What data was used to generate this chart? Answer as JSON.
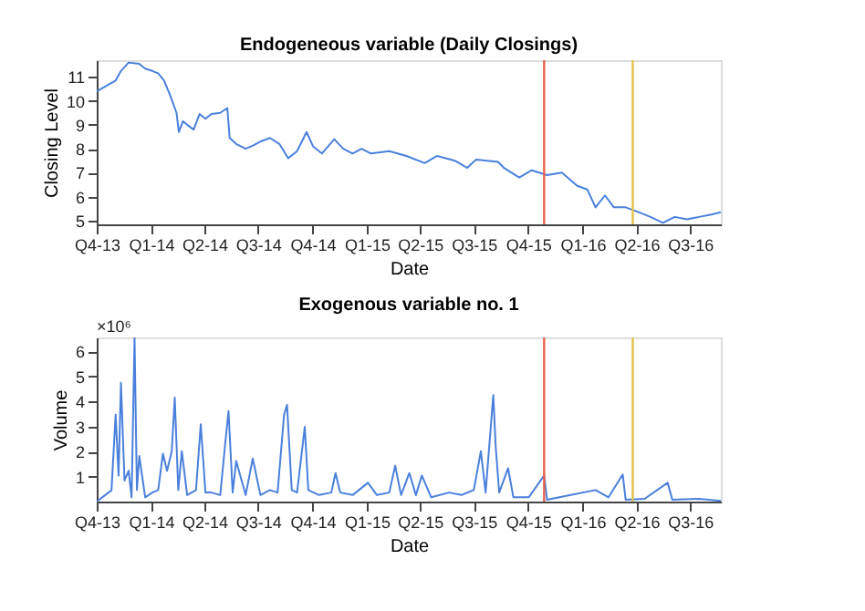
{
  "chart_data": [
    {
      "type": "line",
      "title": "Endogeneous variable (Daily Closings)",
      "xlabel": "Date",
      "ylabel": "Closing Level",
      "x": [
        "2013-10-01",
        "2013-11-02",
        "2013-11-11",
        "2013-11-24",
        "2013-12-12",
        "2013-12-22",
        "2014-01-03",
        "2014-01-13",
        "2014-01-23",
        "2014-02-02",
        "2014-02-13",
        "2014-02-17",
        "2014-02-24",
        "2014-03-03",
        "2014-03-14",
        "2014-03-24",
        "2014-04-03",
        "2014-04-13",
        "2014-04-28",
        "2014-05-10",
        "2014-05-14",
        "2014-05-25",
        "2014-06-10",
        "2014-06-24",
        "2014-07-05",
        "2014-07-21",
        "2014-08-06",
        "2014-08-21",
        "2014-09-05",
        "2014-09-21",
        "2014-10-02",
        "2014-10-17",
        "2014-11-07",
        "2014-11-22",
        "2014-12-08",
        "2014-12-23",
        "2015-01-08",
        "2015-02-08",
        "2015-03-09",
        "2015-04-09",
        "2015-04-30",
        "2015-05-30",
        "2015-06-20",
        "2015-07-05",
        "2015-08-11",
        "2015-08-21",
        "2015-09-16",
        "2015-10-07",
        "2015-11-02",
        "2015-11-27",
        "2015-12-23",
        "2016-01-09",
        "2016-01-23",
        "2016-02-08",
        "2016-02-23",
        "2016-03-14",
        "2016-04-05",
        "2016-04-25",
        "2016-05-16",
        "2016-06-05",
        "2016-06-26",
        "2016-07-16",
        "2016-08-06",
        "2016-08-22"
      ],
      "series": [
        {
          "color": "#4a80dc",
          "values": [
            10.4,
            10.85,
            11.25,
            11.6,
            11.55,
            11.35,
            11.25,
            11.15,
            10.85,
            10.25,
            9.5,
            8.7,
            9.15,
            9.0,
            8.8,
            9.45,
            9.25,
            9.45,
            9.5,
            9.7,
            8.45,
            8.2,
            8.0,
            8.15,
            8.3,
            8.45,
            8.2,
            7.6,
            7.9,
            8.7,
            8.1,
            7.8,
            8.4,
            8.0,
            7.8,
            8.0,
            7.8,
            7.9,
            7.7,
            7.4,
            7.7,
            7.5,
            7.2,
            7.55,
            7.45,
            7.2,
            6.8,
            7.1,
            6.9,
            7.0,
            6.45,
            6.3,
            5.55,
            6.05,
            5.55,
            5.55,
            5.35,
            5.15,
            4.9,
            5.15,
            5.05,
            5.15,
            5.25,
            5.35
          ]
        }
      ],
      "xlim": [
        "2013-10-01",
        "2016-08-22"
      ],
      "xticks": [
        {
          "value": "2013-10-01",
          "label": "Q4-13"
        },
        {
          "value": "2014-01-01",
          "label": "Q1-14"
        },
        {
          "value": "2014-04-01",
          "label": "Q2-14"
        },
        {
          "value": "2014-07-01",
          "label": "Q3-14"
        },
        {
          "value": "2014-10-01",
          "label": "Q4-14"
        },
        {
          "value": "2015-01-01",
          "label": "Q1-15"
        },
        {
          "value": "2015-04-01",
          "label": "Q2-15"
        },
        {
          "value": "2015-07-01",
          "label": "Q3-15"
        },
        {
          "value": "2015-10-01",
          "label": "Q4-15"
        },
        {
          "value": "2016-01-01",
          "label": "Q1-16"
        },
        {
          "value": "2016-04-01",
          "label": "Q2-16"
        },
        {
          "value": "2016-07-01",
          "label": "Q3-16"
        }
      ],
      "ylim": [
        4.84,
        11.7
      ],
      "yticks": [
        5,
        6,
        7,
        8,
        9,
        10,
        11
      ],
      "ref_lines": [
        {
          "axis": "x",
          "value": "2015-10-28",
          "color": "#e8604a"
        },
        {
          "axis": "x",
          "value": "2016-03-26",
          "color": "#e2c24a"
        }
      ],
      "grid": false
    },
    {
      "type": "line",
      "title": "Exogenous variable no. 1",
      "xlabel": "Date",
      "ylabel": "Volume",
      "annotations": [
        "×10⁶"
      ],
      "x": [
        "2013-10-01",
        "2013-10-26",
        "2013-11-02",
        "2013-11-07",
        "2013-11-11",
        "2013-11-17",
        "2013-11-24",
        "2013-11-29",
        "2013-12-04",
        "2013-12-08",
        "2013-12-12",
        "2013-12-22",
        "2014-01-03",
        "2014-01-13",
        "2014-01-21",
        "2014-01-28",
        "2014-02-05",
        "2014-02-10",
        "2014-02-16",
        "2014-02-22",
        "2014-03-03",
        "2014-03-18",
        "2014-03-26",
        "2014-04-03",
        "2014-04-13",
        "2014-04-28",
        "2014-05-06",
        "2014-05-12",
        "2014-05-19",
        "2014-05-25",
        "2014-06-10",
        "2014-06-22",
        "2014-07-05",
        "2014-07-21",
        "2014-08-03",
        "2014-08-14",
        "2014-08-19",
        "2014-08-27",
        "2014-09-05",
        "2014-09-18",
        "2014-09-24",
        "2014-10-12",
        "2014-11-02",
        "2014-11-09",
        "2014-11-17",
        "2014-12-08",
        "2015-01-03",
        "2015-01-18",
        "2015-02-08",
        "2015-02-18",
        "2015-02-28",
        "2015-03-14",
        "2015-03-25",
        "2015-04-04",
        "2015-04-20",
        "2015-05-20",
        "2015-06-10",
        "2015-07-01",
        "2015-07-13",
        "2015-07-21",
        "2015-08-03",
        "2015-08-07",
        "2015-08-13",
        "2015-08-28",
        "2015-09-06",
        "2015-10-02",
        "2015-10-28",
        "2015-11-02",
        "2015-12-12",
        "2016-01-23",
        "2016-02-14",
        "2016-03-09",
        "2016-03-14",
        "2016-04-15",
        "2016-05-24",
        "2016-06-01",
        "2016-07-16",
        "2016-08-22"
      ],
      "series": [
        {
          "color": "#4a80dc",
          "values": [
            0,
            0.45,
            3.47,
            1.04,
            4.74,
            0.84,
            1.23,
            0.17,
            6.54,
            0.46,
            1.82,
            0.17,
            0.36,
            0.46,
            1.91,
            1.23,
            2.01,
            4.15,
            0.46,
            2.01,
            0.26,
            0.46,
            3.08,
            0.36,
            0.36,
            0.26,
            2.21,
            3.61,
            0.36,
            1.62,
            0.26,
            1.72,
            0.26,
            0.46,
            0.36,
            3.47,
            3.86,
            0.46,
            0.36,
            2.98,
            0.46,
            0.26,
            0.36,
            1.14,
            0.36,
            0.26,
            0.75,
            0.26,
            0.36,
            1.43,
            0.26,
            1.14,
            0.26,
            1.04,
            0.17,
            0.36,
            0.26,
            0.46,
            2.01,
            0.36,
            4.25,
            2.21,
            0.36,
            1.33,
            0.17,
            0.17,
            1.04,
            0.07,
            0.26,
            0.46,
            0.17,
            1.08,
            0.07,
            0.11,
            0.75,
            0.07,
            0.11,
            0.03
          ]
        }
      ],
      "xlim": [
        "2013-10-01",
        "2016-08-22"
      ],
      "xticks": [
        {
          "value": "2013-10-01",
          "label": "Q4-13"
        },
        {
          "value": "2014-01-01",
          "label": "Q1-14"
        },
        {
          "value": "2014-04-01",
          "label": "Q2-14"
        },
        {
          "value": "2014-07-01",
          "label": "Q3-14"
        },
        {
          "value": "2014-10-01",
          "label": "Q4-14"
        },
        {
          "value": "2015-01-01",
          "label": "Q1-15"
        },
        {
          "value": "2015-04-01",
          "label": "Q2-15"
        },
        {
          "value": "2015-07-01",
          "label": "Q3-15"
        },
        {
          "value": "2015-10-01",
          "label": "Q4-15"
        },
        {
          "value": "2016-01-01",
          "label": "Q1-16"
        },
        {
          "value": "2016-04-01",
          "label": "Q2-16"
        },
        {
          "value": "2016-07-01",
          "label": "Q3-16"
        }
      ],
      "ylim": [
        0,
        6.55
      ],
      "yticks": [
        1,
        2,
        3,
        4,
        5,
        6
      ],
      "ref_lines": [
        {
          "axis": "x",
          "value": "2015-10-28",
          "color": "#e8604a"
        },
        {
          "axis": "x",
          "value": "2016-03-26",
          "color": "#e2c24a"
        }
      ],
      "grid": false
    }
  ]
}
